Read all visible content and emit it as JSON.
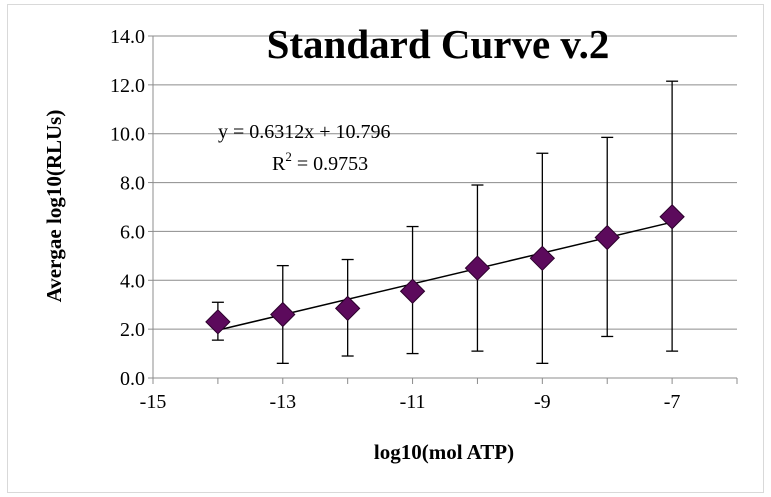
{
  "chart_data": {
    "type": "scatter",
    "title": "Standard Curve v.2",
    "xlabel": "log10(mol ATP)",
    "ylabel": "Avergae log10(RLUs)",
    "xlim": [
      -15,
      -6
    ],
    "ylim": [
      0,
      14
    ],
    "x_ticks": [
      -15,
      -13,
      -11,
      -9,
      -7
    ],
    "x_tick_labels": [
      "-15",
      "-13",
      "-11",
      "-9",
      "-7"
    ],
    "y_ticks": [
      0,
      2,
      4,
      6,
      8,
      10,
      12,
      14
    ],
    "y_tick_labels": [
      "0.0",
      "2.0",
      "4.0",
      "6.0",
      "8.0",
      "10.0",
      "12.0",
      "14.0"
    ],
    "grid": "horizontal",
    "marker_color": "#5c0a5c",
    "points": [
      {
        "x": -14,
        "y": 2.3,
        "err_low": 1.55,
        "err_high": 3.1
      },
      {
        "x": -13,
        "y": 2.6,
        "err_low": 0.6,
        "err_high": 4.6
      },
      {
        "x": -12,
        "y": 2.85,
        "err_low": 0.9,
        "err_high": 4.85
      },
      {
        "x": -11,
        "y": 3.55,
        "err_low": 1.0,
        "err_high": 6.2
      },
      {
        "x": -10,
        "y": 4.5,
        "err_low": 1.1,
        "err_high": 7.9
      },
      {
        "x": -9,
        "y": 4.9,
        "err_low": 0.6,
        "err_high": 9.2
      },
      {
        "x": -8,
        "y": 5.75,
        "err_low": 1.7,
        "err_high": 9.85
      },
      {
        "x": -7,
        "y": 6.6,
        "err_low": 1.1,
        "err_high": 12.15
      }
    ],
    "trendline": {
      "slope": 0.6312,
      "intercept": 10.796,
      "x_range": [
        -14,
        -7
      ],
      "equation_label": "y = 0.6312x + 10.796",
      "r2_prefix": "R",
      "r2_sup": "2",
      "r2_value": " = 0.9753"
    }
  }
}
